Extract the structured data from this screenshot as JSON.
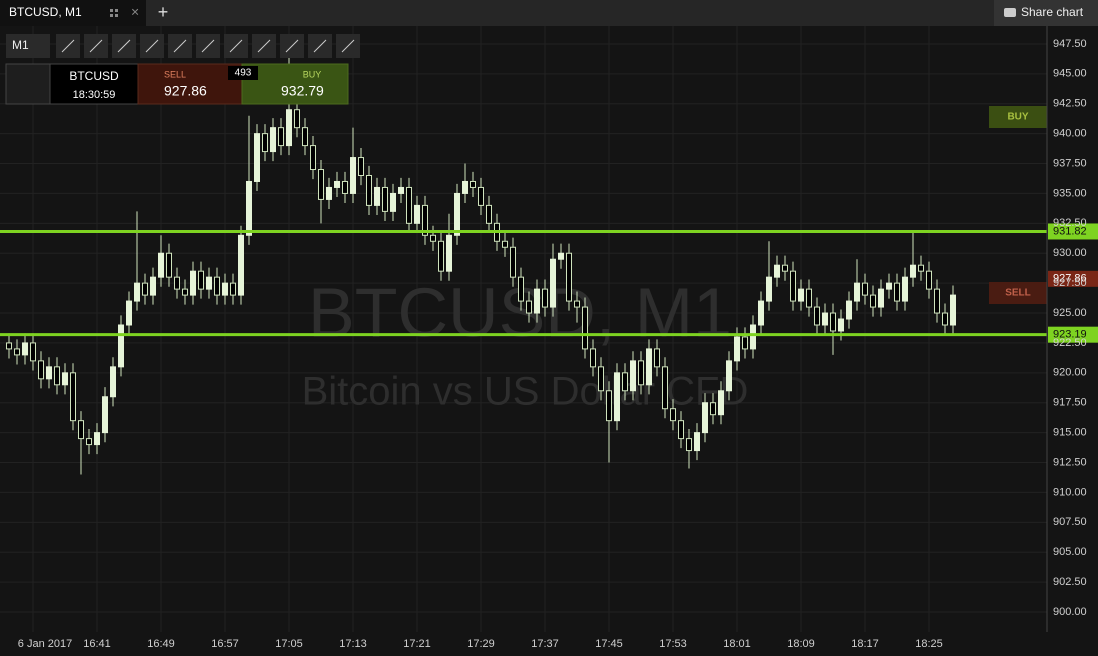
{
  "tab": {
    "title": "BTCUSD, M1"
  },
  "share": "Share chart",
  "toolbar": {
    "timeframe": "M1"
  },
  "ticket": {
    "symbol": "BTCUSD",
    "time": "18:30:59",
    "sell_label": "SELL",
    "sell": 927.86,
    "spread": 493,
    "buy_label": "BUY",
    "buy": 932.79
  },
  "chart_data": {
    "type": "candlestick",
    "watermark": "BTCUSD, M1",
    "subtitle": "Bitcoin vs US Dollar CFD",
    "categories": [
      null,
      null,
      null,
      "6 Jan 2017",
      null,
      null,
      null,
      null,
      null,
      null,
      null,
      "16:41",
      null,
      null,
      null,
      null,
      null,
      null,
      null,
      "16:49",
      null,
      null,
      null,
      null,
      null,
      null,
      null,
      "16:57",
      null,
      null,
      null,
      null,
      null,
      null,
      null,
      "17:05",
      null,
      null,
      null,
      null,
      null,
      null,
      null,
      "17:13",
      null,
      null,
      null,
      null,
      null,
      null,
      null,
      "17:21",
      null,
      null,
      null,
      null,
      null,
      null,
      null,
      "17:29",
      null,
      null,
      null,
      null,
      null,
      null,
      null,
      "17:37",
      null,
      null,
      null,
      null,
      null,
      null,
      null,
      "17:45",
      null,
      null,
      null,
      null,
      null,
      null,
      null,
      "17:53",
      null,
      null,
      null,
      null,
      null,
      null,
      null,
      "18:01",
      null,
      null,
      null,
      null,
      null,
      null,
      null,
      "18:09",
      null,
      null,
      null,
      null,
      null,
      null,
      null,
      "18:17",
      null,
      null,
      null,
      null,
      null,
      null,
      null,
      "18:25",
      null,
      null,
      null
    ],
    "open": [
      922.5,
      922,
      921.5,
      922.5,
      921,
      919.5,
      920.5,
      919,
      920,
      916,
      914.5,
      914,
      915,
      918,
      920.5,
      924,
      926,
      927.5,
      926.5,
      928,
      930,
      928,
      927,
      926.5,
      928.5,
      927,
      928,
      926.5,
      927.5,
      926.5,
      931.5,
      936,
      940,
      938.5,
      940.5,
      939,
      942,
      940.5,
      939,
      937,
      934.5,
      935.5,
      936,
      935,
      938,
      936.5,
      934,
      935.5,
      933.5,
      935,
      935.5,
      932.5,
      934,
      931.5,
      931,
      928.5,
      931.5,
      935,
      936,
      935.5,
      934,
      932.5,
      931,
      930.5,
      928,
      926,
      925,
      927,
      925.5,
      929.5,
      930,
      926,
      925.5,
      922,
      920.5,
      918.5,
      916,
      920,
      918.5,
      921,
      919,
      922,
      920.5,
      917,
      916,
      914.5,
      913.5,
      915,
      917.5,
      916.5,
      918.5,
      921,
      923,
      922,
      924,
      926,
      928,
      929,
      928.5,
      926,
      927,
      925.5,
      924,
      925,
      923.5,
      924.5,
      926,
      927.5,
      926.5,
      925.5,
      927,
      927.5,
      926,
      928,
      929,
      928.5,
      927,
      925,
      924
    ],
    "high": [
      923.3,
      922.8,
      923.3,
      923.3,
      921.8,
      921.3,
      921.3,
      920.8,
      920.8,
      916.8,
      915.3,
      915.8,
      918.8,
      921.3,
      924.8,
      926.8,
      933.5,
      928.3,
      928.8,
      931.5,
      930.8,
      928.8,
      927.8,
      929.3,
      929.3,
      928.8,
      928.8,
      928.3,
      928.3,
      932.3,
      941.5,
      940.8,
      940.8,
      941.3,
      941.3,
      946.5,
      942.8,
      941.3,
      939.8,
      937.8,
      936.3,
      936.8,
      936.8,
      940.5,
      938.8,
      937.3,
      936.3,
      936.3,
      935.8,
      936.3,
      936.3,
      934.8,
      934.8,
      932.3,
      931.8,
      933.3,
      935.8,
      937.5,
      936.8,
      936.3,
      934.8,
      933.3,
      931.8,
      931.3,
      928.8,
      926.8,
      927.8,
      927.8,
      930.8,
      930.8,
      930.8,
      926.8,
      926.3,
      922.8,
      921.3,
      919.3,
      920.8,
      920.8,
      921.8,
      921.8,
      922.8,
      922.8,
      921.3,
      917.8,
      916.8,
      915.3,
      915.8,
      918.3,
      918.3,
      919.3,
      921.8,
      923.8,
      923.8,
      924.8,
      926.8,
      931,
      929.8,
      929.8,
      929.3,
      927.8,
      927.8,
      926.3,
      925.8,
      925.8,
      925.3,
      926.8,
      929.5,
      928.3,
      927.3,
      927.8,
      928.3,
      928.3,
      928.8,
      931.8,
      929.8,
      929.3,
      927.8,
      925.8,
      927.3
    ],
    "low": [
      921.2,
      920.7,
      920.7,
      920.2,
      918.7,
      918.7,
      918.2,
      918.2,
      915.2,
      911.5,
      913.2,
      913.2,
      914.2,
      917.2,
      919.7,
      923.2,
      925.2,
      925.7,
      925.7,
      927.2,
      927.2,
      926.2,
      925.7,
      925.7,
      926.2,
      926.2,
      925.7,
      925.7,
      925.7,
      925.7,
      930.7,
      935.2,
      937.7,
      937.7,
      938.2,
      938.2,
      939.7,
      938.2,
      936.2,
      932.5,
      933.7,
      934.7,
      934.2,
      934.2,
      935.7,
      933.2,
      933.2,
      932.7,
      932.7,
      934.2,
      931.7,
      931.7,
      930.7,
      930.2,
      927.7,
      927.7,
      930.7,
      934.2,
      934.7,
      933.2,
      931.7,
      930.2,
      929.7,
      927.2,
      925.2,
      924.2,
      924.2,
      924.7,
      924.7,
      928.7,
      925.2,
      924.2,
      921.2,
      919.7,
      917.7,
      912.5,
      915.2,
      917.7,
      917.7,
      918.2,
      918.2,
      919.7,
      916.2,
      915.2,
      913.7,
      912,
      912.7,
      914.2,
      915.7,
      915.7,
      917.7,
      920.2,
      921.2,
      921.2,
      923.2,
      925.2,
      927.2,
      927.7,
      925.2,
      925.2,
      924.7,
      923.2,
      923.2,
      921.5,
      922.7,
      923.7,
      925.2,
      925.7,
      924.7,
      924.7,
      926.2,
      925.2,
      925.2,
      927.2,
      927.7,
      926.2,
      924.2,
      923.2,
      923.2
    ],
    "close": [
      922,
      921.5,
      922.5,
      921,
      919.5,
      920.5,
      919,
      920,
      916,
      914.5,
      914,
      915,
      918,
      920.5,
      924,
      926,
      927.5,
      926.5,
      928,
      930,
      928,
      927,
      926.5,
      928.5,
      927,
      928,
      926.5,
      927.5,
      926.5,
      931.5,
      936,
      940,
      938.5,
      940.5,
      939,
      942,
      940.5,
      939,
      937,
      934.5,
      935.5,
      936,
      935,
      938,
      936.5,
      934,
      935.5,
      933.5,
      935,
      935.5,
      932.5,
      934,
      931.5,
      931,
      928.5,
      931.5,
      935,
      936,
      935.5,
      934,
      932.5,
      931,
      930.5,
      928,
      926,
      925,
      927,
      925.5,
      929.5,
      930,
      926,
      925.5,
      922,
      920.5,
      918.5,
      916,
      920,
      918.5,
      921,
      919,
      922,
      920.5,
      917,
      916,
      914.5,
      913.5,
      915,
      917.5,
      916.5,
      918.5,
      921,
      923,
      922,
      924,
      926,
      928,
      929,
      928.5,
      926,
      927,
      925.5,
      924,
      925,
      923.5,
      924.5,
      926,
      927.5,
      926.5,
      925.5,
      927,
      927.5,
      926,
      928,
      929,
      928.5,
      927,
      925,
      924,
      926.5
    ],
    "up_color": "#e6f4d8",
    "down_color": "#000000",
    "wick_color": "#cfe3bd",
    "ylim": [
      898.33,
      949.0
    ],
    "yticks": [
      {
        "value": 900,
        "label": "900.00"
      },
      {
        "value": 902.5,
        "label": "902.50"
      },
      {
        "value": 905,
        "label": "905.00"
      },
      {
        "value": 907.5,
        "label": "907.50"
      },
      {
        "value": 910,
        "label": "910.00"
      },
      {
        "value": 912.5,
        "label": "912.50"
      },
      {
        "value": 915,
        "label": "915.00"
      },
      {
        "value": 917.5,
        "label": "917.50"
      },
      {
        "value": 920,
        "label": "920.00"
      },
      {
        "value": 922.5,
        "label": "922.50"
      },
      {
        "value": 925,
        "label": "925.00"
      },
      {
        "value": 927.5,
        "label": "927.50"
      },
      {
        "value": 930,
        "label": "930.00"
      },
      {
        "value": 932.5,
        "label": "932.50"
      },
      {
        "value": 935,
        "label": "935.00"
      },
      {
        "value": 937.5,
        "label": "937.50"
      },
      {
        "value": 940,
        "label": "940.00"
      },
      {
        "value": 942.5,
        "label": "942.50"
      },
      {
        "value": 945,
        "label": "945.00"
      },
      {
        "value": 947.5,
        "label": "947.50"
      }
    ],
    "grid": true,
    "lines": [
      {
        "value": 931.82,
        "color": "#7ed321"
      },
      {
        "value": 923.19,
        "color": "#7ed321"
      }
    ],
    "current_price": 927.86,
    "current_color": "#7a2616",
    "markers": [
      {
        "label": "BUY",
        "color": "#3b4f12"
      },
      {
        "label": "SELL",
        "color": "#4a1c12"
      }
    ]
  }
}
